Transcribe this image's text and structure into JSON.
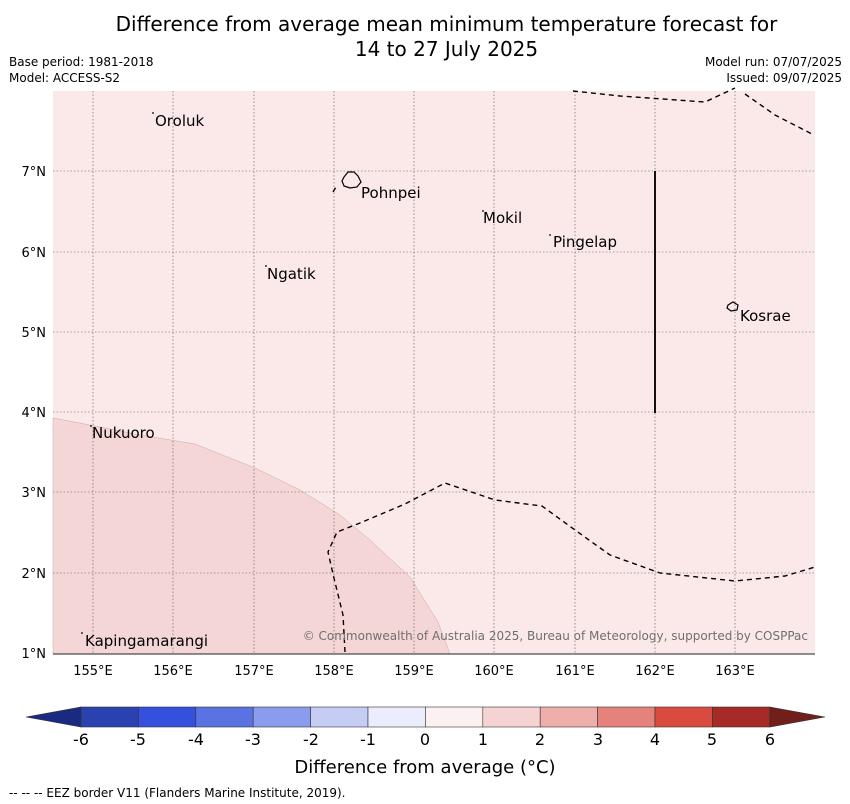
{
  "title_line1": "Difference from average mean minimum temperature forecast for",
  "title_line2": "14 to 27 July 2025",
  "meta": {
    "base_period": "Base period: 1981-2018",
    "model": "Model: ACCESS-S2",
    "model_run": "Model run: 07/07/2025",
    "issued": "Issued: 09/07/2025"
  },
  "copyright": "© Commonwealth of Australia 2025, Bureau of Meteorology, supported by COSPPac",
  "lon_ticks": [
    "155°E",
    "156°E",
    "157°E",
    "158°E",
    "159°E",
    "160°E",
    "161°E",
    "162°E",
    "163°E"
  ],
  "lat_ticks": [
    "7°N",
    "6°N",
    "5°N",
    "4°N",
    "3°N",
    "2°N",
    "1°N"
  ],
  "places": [
    "Oroluk",
    "Pohnpei",
    "Mokil",
    "Pingelap",
    "Ngatik",
    "Kosrae",
    "Nukuoro",
    "Kapingamarangi"
  ],
  "legend": {
    "ticks": [
      "-6",
      "-5",
      "-4",
      "-3",
      "-2",
      "-1",
      "0",
      "1",
      "2",
      "3",
      "4",
      "5",
      "6"
    ],
    "label": "Difference from average (°C)",
    "colors": {
      "under": "#1a2a80",
      "bins": [
        "#2a42b0",
        "#3450dc",
        "#5a72e2",
        "#8a9ced",
        "#c6cdf5",
        "#ebecfc",
        "#fdf0f0",
        "#f6d3d3",
        "#eeaeab",
        "#e5827c",
        "#d94b3e",
        "#a62a25"
      ],
      "over": "#701f1b"
    }
  },
  "field_colors": {
    "zero_to_one": "#fbe9e9",
    "one_to_two": "#f5d6d6"
  },
  "footnote": "--  --  -- EEZ border V11 (Flanders Marine Institute, 2019)."
}
